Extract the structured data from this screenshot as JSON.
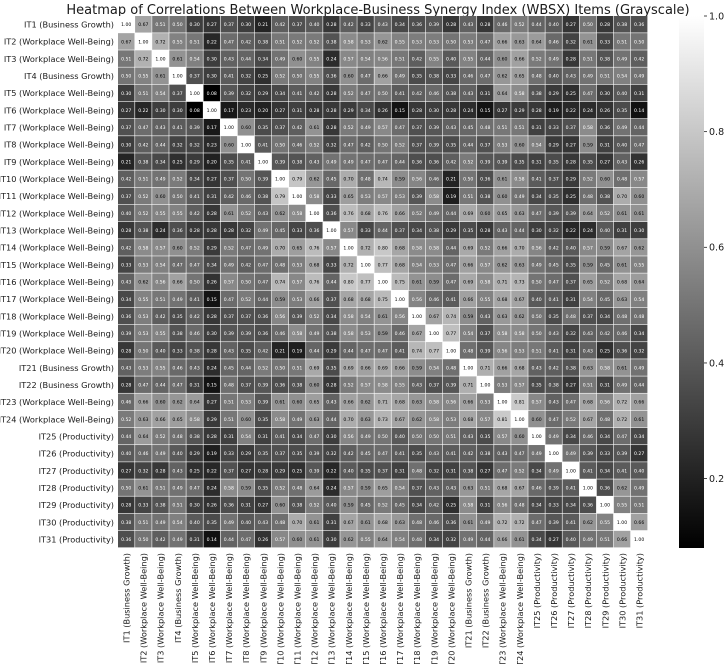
{
  "chart_data": {
    "type": "heatmap",
    "title": "Heatmap of Correlations Between Workplace-Business Synergy Index (WBSX) Items (Grayscale)",
    "labels": [
      "IT1 (Business Growth)",
      "IT2 (Workplace Well-Being)",
      "IT3 (Workplace Well-Being)",
      "IT4 (Business Growth)",
      "IT5 (Workplace Well-Being)",
      "IT6 (Workplace Well-Being)",
      "IT7 (Workplace Well-Being)",
      "IT8 (Workplace Well-Being)",
      "IT9 (Workplace Well-Being)",
      "IT10 (Workplace Well-Being)",
      "IT11 (Workplace Well-Being)",
      "IT12 (Workplace Well-Being)",
      "IT13 (Workplace Well-Being)",
      "IT14 (Workplace Well-Being)",
      "IT15 (Workplace Well-Being)",
      "IT16 (Workplace Well-Being)",
      "IT17 (Workplace Well-Being)",
      "IT18 (Workplace Well-Being)",
      "IT19 (Workplace Well-Being)",
      "IT20 (Workplace Well-Being)",
      "IT21 (Business Growth)",
      "IT22 (Business Growth)",
      "IT23 (Workplace Well-Being)",
      "IT24 (Workplace Well-Being)",
      "IT25 (Productivity)",
      "IT26 (Productivity)",
      "IT27 (Productivity)",
      "IT28 (Productivity)",
      "IT29 (Productivity)",
      "IT30 (Productivity)",
      "IT31 (Productivity)"
    ],
    "matrix": [
      [
        1.0,
        0.67,
        0.51,
        0.5,
        0.3,
        0.27,
        0.37,
        0.3,
        0.21,
        0.42,
        0.37,
        0.4,
        0.28,
        0.42,
        0.33,
        0.43,
        0.34,
        0.36,
        0.39,
        0.28,
        0.43,
        0.28,
        0.46,
        0.52,
        0.44,
        0.4,
        0.27,
        0.5,
        0.28,
        0.38,
        0.36
      ],
      [
        0.67,
        1.0,
        0.72,
        0.55,
        0.51,
        0.22,
        0.47,
        0.42,
        0.38,
        0.51,
        0.52,
        0.52,
        0.38,
        0.58,
        0.53,
        0.62,
        0.55,
        0.53,
        0.53,
        0.5,
        0.53,
        0.47,
        0.66,
        0.63,
        0.64,
        0.46,
        0.32,
        0.61,
        0.33,
        0.51,
        0.5
      ],
      [
        0.51,
        0.72,
        1.0,
        0.61,
        0.54,
        0.3,
        0.43,
        0.44,
        0.34,
        0.49,
        0.6,
        0.55,
        0.24,
        0.57,
        0.54,
        0.56,
        0.51,
        0.42,
        0.55,
        0.4,
        0.55,
        0.44,
        0.6,
        0.66,
        0.52,
        0.49,
        0.28,
        0.51,
        0.38,
        0.49,
        0.42
      ],
      [
        0.5,
        0.55,
        0.61,
        1.0,
        0.37,
        0.3,
        0.41,
        0.32,
        0.25,
        0.52,
        0.5,
        0.55,
        0.36,
        0.6,
        0.47,
        0.66,
        0.49,
        0.35,
        0.38,
        0.33,
        0.46,
        0.47,
        0.62,
        0.65,
        0.48,
        0.4,
        0.43,
        0.49,
        0.51,
        0.54,
        0.49
      ],
      [
        0.3,
        0.51,
        0.54,
        0.37,
        1.0,
        0.08,
        0.39,
        0.32,
        0.29,
        0.34,
        0.41,
        0.42,
        0.28,
        0.52,
        0.47,
        0.5,
        0.41,
        0.42,
        0.46,
        0.38,
        0.43,
        0.31,
        0.64,
        0.58,
        0.38,
        0.29,
        0.25,
        0.47,
        0.3,
        0.4,
        0.31
      ],
      [
        0.27,
        0.22,
        0.3,
        0.3,
        0.08,
        1.0,
        0.17,
        0.23,
        0.2,
        0.27,
        0.31,
        0.28,
        0.28,
        0.29,
        0.34,
        0.26,
        0.15,
        0.28,
        0.3,
        0.28,
        0.24,
        0.15,
        0.27,
        0.29,
        0.28,
        0.19,
        0.22,
        0.24,
        0.26,
        0.35,
        0.14
      ],
      [
        0.37,
        0.47,
        0.43,
        0.41,
        0.39,
        0.17,
        1.0,
        0.6,
        0.35,
        0.37,
        0.42,
        0.61,
        0.28,
        0.52,
        0.49,
        0.57,
        0.47,
        0.37,
        0.39,
        0.43,
        0.45,
        0.48,
        0.51,
        0.51,
        0.31,
        0.33,
        0.37,
        0.58,
        0.36,
        0.49,
        0.44
      ],
      [
        0.3,
        0.42,
        0.44,
        0.32,
        0.32,
        0.23,
        0.6,
        1.0,
        0.41,
        0.5,
        0.46,
        0.52,
        0.32,
        0.47,
        0.42,
        0.5,
        0.52,
        0.37,
        0.39,
        0.35,
        0.44,
        0.37,
        0.53,
        0.6,
        0.54,
        0.29,
        0.27,
        0.59,
        0.31,
        0.4,
        0.47
      ],
      [
        0.21,
        0.38,
        0.34,
        0.25,
        0.29,
        0.2,
        0.35,
        0.41,
        1.0,
        0.39,
        0.38,
        0.43,
        0.49,
        0.49,
        0.47,
        0.47,
        0.44,
        0.36,
        0.36,
        0.42,
        0.52,
        0.39,
        0.39,
        0.35,
        0.31,
        0.35,
        0.28,
        0.35,
        0.27,
        0.43,
        0.26
      ],
      [
        0.42,
        0.51,
        0.49,
        0.52,
        0.34,
        0.27,
        0.37,
        0.5,
        0.39,
        1.0,
        0.79,
        0.62,
        0.45,
        0.7,
        0.48,
        0.74,
        0.59,
        0.56,
        0.46,
        0.21,
        0.5,
        0.36,
        0.61,
        0.58,
        0.41,
        0.37,
        0.29,
        0.52,
        0.6,
        0.48,
        0.57
      ],
      [
        0.37,
        0.52,
        0.6,
        0.5,
        0.41,
        0.31,
        0.42,
        0.46,
        0.38,
        0.79,
        1.0,
        0.58,
        0.33,
        0.65,
        0.53,
        0.57,
        0.53,
        0.39,
        0.58,
        0.19,
        0.51,
        0.38,
        0.6,
        0.49,
        0.34,
        0.35,
        0.25,
        0.48,
        0.38,
        0.7,
        0.6
      ],
      [
        0.4,
        0.52,
        0.55,
        0.55,
        0.42,
        0.28,
        0.61,
        0.52,
        0.43,
        0.62,
        0.58,
        1.0,
        0.36,
        0.76,
        0.68,
        0.76,
        0.66,
        0.52,
        0.49,
        0.44,
        0.69,
        0.6,
        0.65,
        0.63,
        0.47,
        0.39,
        0.39,
        0.64,
        0.52,
        0.61,
        0.61
      ],
      [
        0.28,
        0.38,
        0.24,
        0.36,
        0.28,
        0.28,
        0.28,
        0.32,
        0.49,
        0.45,
        0.33,
        0.36,
        1.0,
        0.57,
        0.33,
        0.44,
        0.37,
        0.34,
        0.38,
        0.29,
        0.35,
        0.28,
        0.43,
        0.44,
        0.3,
        0.32,
        0.22,
        0.24,
        0.4,
        0.31,
        0.3
      ],
      [
        0.42,
        0.58,
        0.57,
        0.6,
        0.52,
        0.29,
        0.52,
        0.47,
        0.49,
        0.7,
        0.65,
        0.76,
        0.57,
        1.0,
        0.72,
        0.8,
        0.68,
        0.58,
        0.58,
        0.44,
        0.69,
        0.52,
        0.66,
        0.7,
        0.56,
        0.42,
        0.4,
        0.57,
        0.59,
        0.67,
        0.62
      ],
      [
        0.33,
        0.53,
        0.54,
        0.47,
        0.47,
        0.34,
        0.49,
        0.42,
        0.47,
        0.48,
        0.53,
        0.68,
        0.33,
        0.72,
        1.0,
        0.77,
        0.68,
        0.54,
        0.53,
        0.47,
        0.66,
        0.57,
        0.62,
        0.63,
        0.49,
        0.45,
        0.35,
        0.59,
        0.45,
        0.61,
        0.55
      ],
      [
        0.43,
        0.62,
        0.56,
        0.66,
        0.5,
        0.26,
        0.57,
        0.5,
        0.47,
        0.74,
        0.57,
        0.76,
        0.44,
        0.8,
        0.77,
        1.0,
        0.75,
        0.61,
        0.59,
        0.47,
        0.69,
        0.58,
        0.71,
        0.73,
        0.5,
        0.47,
        0.37,
        0.65,
        0.52,
        0.68,
        0.64
      ],
      [
        0.34,
        0.55,
        0.51,
        0.49,
        0.41,
        0.15,
        0.47,
        0.52,
        0.44,
        0.59,
        0.53,
        0.66,
        0.37,
        0.68,
        0.68,
        0.75,
        1.0,
        0.56,
        0.46,
        0.41,
        0.66,
        0.55,
        0.68,
        0.67,
        0.4,
        0.41,
        0.31,
        0.54,
        0.45,
        0.63,
        0.54
      ],
      [
        0.36,
        0.53,
        0.42,
        0.35,
        0.42,
        0.28,
        0.37,
        0.37,
        0.36,
        0.56,
        0.39,
        0.52,
        0.34,
        0.58,
        0.54,
        0.61,
        0.56,
        1.0,
        0.67,
        0.74,
        0.59,
        0.43,
        0.63,
        0.62,
        0.5,
        0.35,
        0.48,
        0.37,
        0.34,
        0.48,
        0.48
      ],
      [
        0.39,
        0.53,
        0.55,
        0.38,
        0.46,
        0.3,
        0.39,
        0.39,
        0.36,
        0.46,
        0.58,
        0.49,
        0.38,
        0.58,
        0.53,
        0.59,
        0.46,
        0.67,
        1.0,
        0.77,
        0.54,
        0.37,
        0.58,
        0.58,
        0.5,
        0.43,
        0.32,
        0.43,
        0.42,
        0.46,
        0.34
      ],
      [
        0.28,
        0.5,
        0.4,
        0.33,
        0.38,
        0.28,
        0.43,
        0.35,
        0.42,
        0.21,
        0.19,
        0.44,
        0.29,
        0.44,
        0.47,
        0.47,
        0.41,
        0.74,
        0.77,
        1.0,
        0.48,
        0.39,
        0.56,
        0.53,
        0.51,
        0.41,
        0.31,
        0.43,
        0.25,
        0.36,
        0.32
      ],
      [
        0.43,
        0.53,
        0.55,
        0.46,
        0.43,
        0.24,
        0.45,
        0.44,
        0.52,
        0.5,
        0.51,
        0.69,
        0.35,
        0.69,
        0.66,
        0.69,
        0.66,
        0.59,
        0.54,
        0.48,
        1.0,
        0.71,
        0.66,
        0.68,
        0.43,
        0.42,
        0.38,
        0.63,
        0.58,
        0.61,
        0.49
      ],
      [
        0.28,
        0.47,
        0.44,
        0.47,
        0.31,
        0.15,
        0.48,
        0.37,
        0.39,
        0.36,
        0.38,
        0.6,
        0.28,
        0.52,
        0.57,
        0.58,
        0.55,
        0.43,
        0.37,
        0.39,
        0.71,
        1.0,
        0.53,
        0.57,
        0.35,
        0.38,
        0.27,
        0.51,
        0.31,
        0.49,
        0.44
      ],
      [
        0.46,
        0.66,
        0.6,
        0.62,
        0.64,
        0.27,
        0.51,
        0.53,
        0.39,
        0.61,
        0.6,
        0.65,
        0.43,
        0.66,
        0.62,
        0.71,
        0.68,
        0.63,
        0.58,
        0.56,
        0.66,
        0.53,
        1.0,
        0.81,
        0.57,
        0.43,
        0.47,
        0.68,
        0.56,
        0.72,
        0.66
      ],
      [
        0.52,
        0.63,
        0.66,
        0.65,
        0.58,
        0.29,
        0.51,
        0.6,
        0.35,
        0.58,
        0.49,
        0.63,
        0.44,
        0.7,
        0.63,
        0.73,
        0.67,
        0.62,
        0.58,
        0.53,
        0.68,
        0.57,
        0.81,
        1.0,
        0.6,
        0.47,
        0.52,
        0.67,
        0.48,
        0.72,
        0.61
      ],
      [
        0.44,
        0.64,
        0.52,
        0.48,
        0.38,
        0.28,
        0.31,
        0.54,
        0.31,
        0.41,
        0.34,
        0.47,
        0.3,
        0.56,
        0.49,
        0.5,
        0.4,
        0.5,
        0.5,
        0.51,
        0.43,
        0.35,
        0.57,
        0.6,
        1.0,
        0.49,
        0.34,
        0.46,
        0.34,
        0.47,
        0.34
      ],
      [
        0.4,
        0.46,
        0.49,
        0.4,
        0.29,
        0.19,
        0.33,
        0.29,
        0.35,
        0.37,
        0.35,
        0.39,
        0.32,
        0.42,
        0.45,
        0.47,
        0.41,
        0.35,
        0.43,
        0.41,
        0.42,
        0.38,
        0.43,
        0.47,
        0.49,
        1.0,
        0.49,
        0.39,
        0.33,
        0.39,
        0.27
      ],
      [
        0.27,
        0.32,
        0.28,
        0.43,
        0.25,
        0.22,
        0.37,
        0.27,
        0.28,
        0.29,
        0.25,
        0.39,
        0.22,
        0.4,
        0.35,
        0.37,
        0.31,
        0.48,
        0.32,
        0.31,
        0.38,
        0.27,
        0.47,
        0.52,
        0.34,
        0.49,
        1.0,
        0.41,
        0.34,
        0.41,
        0.4
      ],
      [
        0.5,
        0.61,
        0.51,
        0.49,
        0.47,
        0.24,
        0.58,
        0.59,
        0.35,
        0.52,
        0.48,
        0.64,
        0.24,
        0.57,
        0.59,
        0.65,
        0.54,
        0.37,
        0.43,
        0.43,
        0.63,
        0.51,
        0.68,
        0.67,
        0.46,
        0.39,
        0.41,
        1.0,
        0.36,
        0.62,
        0.49
      ],
      [
        0.28,
        0.33,
        0.38,
        0.51,
        0.3,
        0.26,
        0.36,
        0.31,
        0.27,
        0.6,
        0.38,
        0.52,
        0.4,
        0.59,
        0.45,
        0.52,
        0.45,
        0.34,
        0.42,
        0.25,
        0.58,
        0.31,
        0.56,
        0.48,
        0.34,
        0.33,
        0.34,
        0.36,
        1.0,
        0.55,
        0.51
      ],
      [
        0.38,
        0.51,
        0.49,
        0.54,
        0.4,
        0.35,
        0.49,
        0.4,
        0.43,
        0.48,
        0.7,
        0.61,
        0.31,
        0.67,
        0.61,
        0.68,
        0.63,
        0.48,
        0.46,
        0.36,
        0.61,
        0.49,
        0.72,
        0.72,
        0.47,
        0.39,
        0.41,
        0.62,
        0.55,
        1.0,
        0.66
      ],
      [
        0.36,
        0.5,
        0.42,
        0.49,
        0.31,
        0.14,
        0.44,
        0.47,
        0.26,
        0.57,
        0.6,
        0.61,
        0.3,
        0.62,
        0.55,
        0.64,
        0.54,
        0.48,
        0.34,
        0.32,
        0.49,
        0.44,
        0.66,
        0.61,
        0.34,
        0.27,
        0.4,
        0.49,
        0.51,
        0.66,
        1.0
      ]
    ],
    "colormap": "gray",
    "colorbar": {
      "min": 0.08,
      "max": 1.0,
      "ticks": [
        0.2,
        0.4,
        0.6,
        0.8,
        1.0
      ],
      "tick_labels": [
        "0.2",
        "0.4",
        "0.6",
        "0.8",
        "1.0"
      ]
    },
    "annotations": "cell values shown with 2 decimals",
    "legend": "colorbar-right",
    "grid": false
  }
}
